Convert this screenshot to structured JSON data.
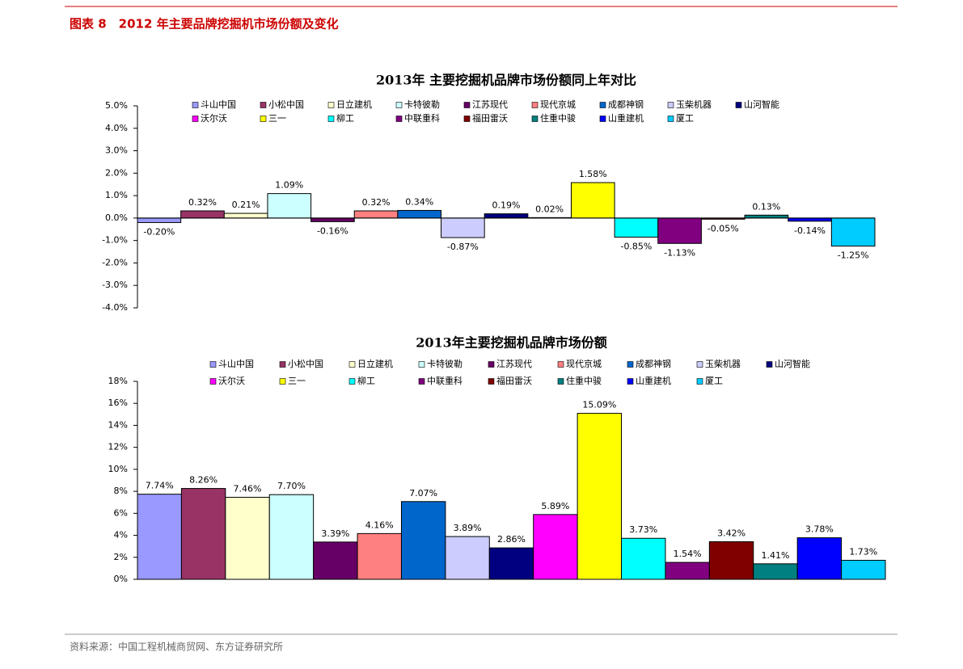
{
  "header": {
    "title": "图表 8　2012 年主要品牌挖掘机市场份额及变化"
  },
  "chart_data": [
    {
      "type": "bar",
      "title": "2013年 主要挖掘机品牌市场份额同上年对比",
      "categories": [
        "斗山中国",
        "小松中国",
        "日立建机",
        "卡特彼勒",
        "江苏现代",
        "现代京城",
        "成都神钢",
        "玉柴机器",
        "山河智能",
        "沃尔沃",
        "三一",
        "柳工",
        "中联重科",
        "福田雷沃",
        "住重中骏",
        "山重建机",
        "厦工"
      ],
      "colors": [
        "#9999ff",
        "#993366",
        "#ffffcc",
        "#ccffff",
        "#660066",
        "#ff8080",
        "#0066cc",
        "#ccccff",
        "#000080",
        "#ff00ff",
        "#ffff00",
        "#00ffff",
        "#800080",
        "#800000",
        "#008080",
        "#0000ff",
        "#00ccff"
      ],
      "values": [
        -0.2,
        0.32,
        0.21,
        1.09,
        -0.16,
        0.32,
        0.34,
        -0.87,
        0.19,
        0.02,
        1.58,
        -0.85,
        -1.13,
        -0.05,
        0.13,
        -0.14,
        -1.25
      ],
      "value_labels": [
        "-0.20%",
        "0.32%",
        "0.21%",
        "1.09%",
        "-0.16%",
        "0.32%",
        "0.34%",
        "-0.87%",
        "0.19%",
        "0.02%",
        "1.58%",
        "-0.85%",
        "-1.13%",
        "-0.05%",
        "0.13%",
        "-0.14%",
        "-1.25%"
      ],
      "ylim": [
        -4,
        5
      ],
      "yticks": [
        {
          "value": 5,
          "label": "5.0%"
        },
        {
          "value": 4,
          "label": "4.0%"
        },
        {
          "value": 3,
          "label": "3.0%"
        },
        {
          "value": 2,
          "label": "2.0%"
        },
        {
          "value": 1,
          "label": "1.0%"
        },
        {
          "value": 0,
          "label": "0.0%"
        },
        {
          "value": -1,
          "label": "-1.0%"
        },
        {
          "value": -2,
          "label": "-2.0%"
        },
        {
          "value": -3,
          "label": "-3.0%"
        },
        {
          "value": -4,
          "label": "-4.0%"
        }
      ]
    },
    {
      "type": "bar",
      "title": "2013年主要挖掘机品牌市场份额",
      "categories": [
        "斗山中国",
        "小松中国",
        "日立建机",
        "卡特彼勒",
        "江苏现代",
        "现代京城",
        "成都神钢",
        "玉柴机器",
        "山河智能",
        "沃尔沃",
        "三一",
        "柳工",
        "中联重科",
        "福田雷沃",
        "住重中骏",
        "山重建机",
        "厦工"
      ],
      "colors": [
        "#9999ff",
        "#993366",
        "#ffffcc",
        "#ccffff",
        "#660066",
        "#ff8080",
        "#0066cc",
        "#ccccff",
        "#000080",
        "#ff00ff",
        "#ffff00",
        "#00ffff",
        "#800080",
        "#800000",
        "#008080",
        "#0000ff",
        "#00ccff"
      ],
      "values": [
        7.74,
        8.26,
        7.46,
        7.7,
        3.39,
        4.16,
        7.07,
        3.89,
        2.86,
        5.89,
        15.09,
        3.73,
        1.54,
        3.42,
        1.41,
        3.78,
        1.73
      ],
      "value_labels": [
        "7.74%",
        "8.26%",
        "7.46%",
        "7.70%",
        "3.39%",
        "4.16%",
        "7.07%",
        "3.89%",
        "2.86%",
        "5.89%",
        "15.09%",
        "3.73%",
        "1.54%",
        "3.42%",
        "1.41%",
        "3.78%",
        "1.73%"
      ],
      "ylim": [
        0,
        18
      ],
      "yticks": [
        {
          "value": 18,
          "label": "18%"
        },
        {
          "value": 16,
          "label": "16%"
        },
        {
          "value": 14,
          "label": "14%"
        },
        {
          "value": 12,
          "label": "12%"
        },
        {
          "value": 10,
          "label": "10%"
        },
        {
          "value": 8,
          "label": "8%"
        },
        {
          "value": 6,
          "label": "6%"
        },
        {
          "value": 4,
          "label": "4%"
        },
        {
          "value": 2,
          "label": "2%"
        },
        {
          "value": 0,
          "label": "0%"
        }
      ]
    }
  ],
  "footer": {
    "source": "资料来源：中国工程机械商贸网、东方证券研究所"
  }
}
